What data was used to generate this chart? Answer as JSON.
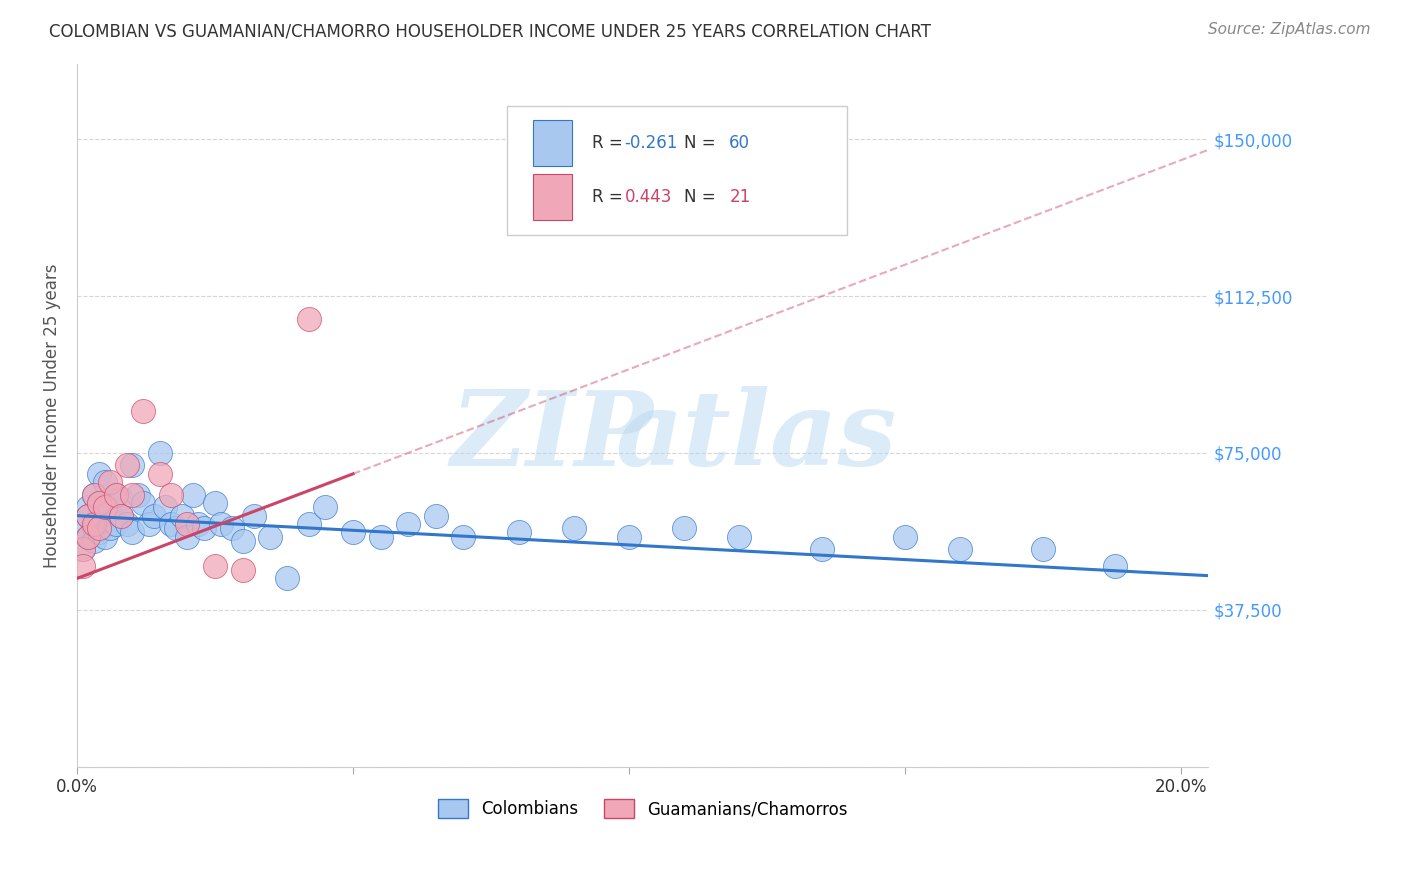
{
  "title": "COLOMBIAN VS GUAMANIAN/CHAMORRO HOUSEHOLDER INCOME UNDER 25 YEARS CORRELATION CHART",
  "source": "Source: ZipAtlas.com",
  "ylabel": "Householder Income Under 25 years",
  "xlim": [
    0.0,
    0.205
  ],
  "ylim": [
    0,
    168000
  ],
  "yticks": [
    0,
    37500,
    75000,
    112500,
    150000
  ],
  "ytick_labels": [
    "",
    "$37,500",
    "$75,000",
    "$112,500",
    "$150,000"
  ],
  "xticks": [
    0.0,
    0.05,
    0.1,
    0.15,
    0.2
  ],
  "xtick_labels": [
    "0.0%",
    "",
    "",
    "",
    "20.0%"
  ],
  "color_colombian": "#a8c8f0",
  "color_guamanian": "#f0a8b8",
  "color_line_colombian": "#3377cc",
  "color_line_guamanian": "#cc4466",
  "color_ytick": "#4499ff",
  "background_color": "#ffffff",
  "grid_color": "#cccccc",
  "col_line_intercept": 60000,
  "col_line_slope": -70000,
  "gua_line_intercept": 45000,
  "gua_line_slope": 500000,
  "gua_line_x_end": 0.205,
  "watermark_zip": "ZIP",
  "watermark_atlas": "atlas"
}
